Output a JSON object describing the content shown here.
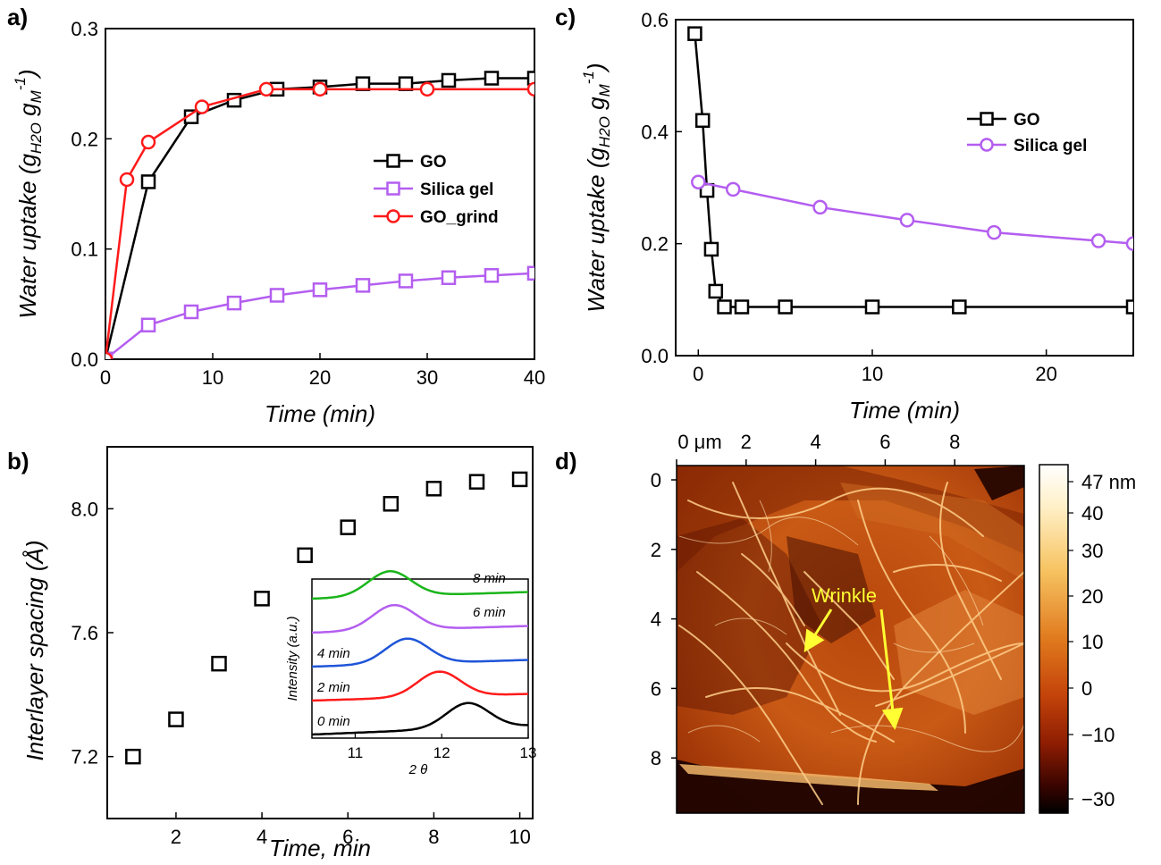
{
  "chart_data": [
    {
      "panel": "a)",
      "type": "line",
      "xlabel": "Time (min)",
      "ylabel_prefix": "Water uptake (g",
      "ylabel_sub1": "H2O",
      "ylabel_mid": " g",
      "ylabel_sub2": "M",
      "ylabel_sup": "-1",
      "ylabel_suffix": ")",
      "xlim": [
        0,
        40
      ],
      "ylim": [
        0.0,
        0.3
      ],
      "xticks": [
        0,
        10,
        20,
        30,
        40
      ],
      "xtick_labels": [
        "0",
        "10",
        "20",
        "30",
        "40"
      ],
      "yticks": [
        0.0,
        0.1,
        0.2,
        0.3
      ],
      "ytick_labels": [
        "0.0",
        "0.1",
        "0.2",
        "0.3"
      ],
      "legend_position": "right-middle",
      "series": [
        {
          "name": "GO",
          "color": "#000000",
          "marker": "square",
          "x": [
            0,
            4,
            8,
            12,
            16,
            20,
            24,
            28,
            32,
            36,
            40
          ],
          "y": [
            0.0,
            0.161,
            0.22,
            0.235,
            0.245,
            0.247,
            0.25,
            0.25,
            0.253,
            0.255,
            0.255
          ]
        },
        {
          "name": "Silica gel",
          "color": "#b45ef0",
          "marker": "square",
          "x": [
            0,
            4,
            8,
            12,
            16,
            20,
            24,
            28,
            32,
            36,
            40
          ],
          "y": [
            0.0,
            0.031,
            0.043,
            0.051,
            0.058,
            0.063,
            0.067,
            0.071,
            0.074,
            0.076,
            0.078
          ]
        },
        {
          "name": "GO_grind",
          "color": "#ff1a1a",
          "marker": "circle",
          "x": [
            0,
            2,
            4,
            9,
            15,
            20,
            30,
            40
          ],
          "y": [
            0.0,
            0.163,
            0.197,
            0.229,
            0.245,
            0.245,
            0.245,
            0.245
          ]
        }
      ]
    },
    {
      "panel": "c)",
      "type": "line",
      "xlabel": "Time (min)",
      "ylabel_prefix": "Water uptake (g",
      "ylabel_sub1": "H2O",
      "ylabel_mid": " g",
      "ylabel_sub2": "M",
      "ylabel_sup": "-1",
      "ylabel_suffix": ")",
      "xlim": [
        -1.3,
        25
      ],
      "ylim": [
        0.0,
        0.6
      ],
      "xticks": [
        0,
        10,
        20
      ],
      "xtick_labels": [
        "0",
        "10",
        "20"
      ],
      "yticks": [
        0.0,
        0.2,
        0.4,
        0.6
      ],
      "ytick_labels": [
        "0.0",
        "0.2",
        "0.4",
        "0.6"
      ],
      "legend_position": "top-right",
      "series": [
        {
          "name": "GO",
          "color": "#000000",
          "marker": "square",
          "x": [
            -0.2,
            0.25,
            0.5,
            0.75,
            1.0,
            1.5,
            2.5,
            5,
            10,
            15,
            25
          ],
          "y": [
            0.575,
            0.42,
            0.295,
            0.19,
            0.115,
            0.087,
            0.087,
            0.087,
            0.087,
            0.087,
            0.087
          ]
        },
        {
          "name": "Silica gel",
          "color": "#b45ef0",
          "marker": "circle",
          "x": [
            0,
            2,
            7,
            12,
            17,
            23,
            25
          ],
          "y": [
            0.31,
            0.297,
            0.265,
            0.242,
            0.22,
            0.205,
            0.2
          ]
        }
      ]
    },
    {
      "panel": "b)",
      "type": "scatter",
      "xlabel": "Time, min",
      "ylabel": "Interlayer spacing (Å)",
      "xlim": [
        0.4,
        10.3
      ],
      "ylim": [
        7.0,
        8.2
      ],
      "xticks": [
        2,
        4,
        6,
        8,
        10
      ],
      "xtick_labels": [
        "2",
        "4",
        "6",
        "8",
        "10"
      ],
      "yticks": [
        7.2,
        7.6,
        8.0
      ],
      "ytick_labels": [
        "7.2",
        "7.6",
        "8.0"
      ],
      "series": [
        {
          "color": "#000000",
          "marker": "square",
          "x": [
            1,
            2,
            3,
            4,
            5,
            6,
            7,
            8,
            9,
            10
          ],
          "y": [
            7.2,
            7.32,
            7.5,
            7.71,
            7.85,
            7.94,
            8.016,
            8.065,
            8.087,
            8.095
          ]
        }
      ],
      "inset": {
        "type": "line",
        "xlabel": "2 θ",
        "ylabel": "Intensity (a.u.)",
        "xlim": [
          10.5,
          13
        ],
        "xticks": [
          11,
          12,
          13
        ],
        "xtick_labels": [
          "11",
          "12",
          "13"
        ],
        "traces": [
          {
            "label": "0 min",
            "color": "#000000",
            "peak": 12.3
          },
          {
            "label": "2 min",
            "color": "#ff1a1a",
            "peak": 11.97
          },
          {
            "label": "4 min",
            "color": "#1f55d8",
            "peak": 11.6
          },
          {
            "label": "6 min",
            "color": "#b45ef0",
            "peak": 11.45
          },
          {
            "label": "8 min",
            "color": "#1ab51a",
            "peak": 11.4
          }
        ]
      }
    },
    {
      "panel": "d)",
      "type": "heatmap",
      "x_unit_label": "0 μm",
      "xtick_labels": [
        "2",
        "4",
        "6",
        "8"
      ],
      "ytick_labels": [
        "0",
        "2",
        "4",
        "6",
        "8"
      ],
      "colorbar_labels": [
        "47 nm",
        "40",
        "30",
        "20",
        "10",
        "0",
        "−10",
        "−30"
      ],
      "annotation": "Wrinkle",
      "annotation_color": "#ffff33"
    }
  ]
}
